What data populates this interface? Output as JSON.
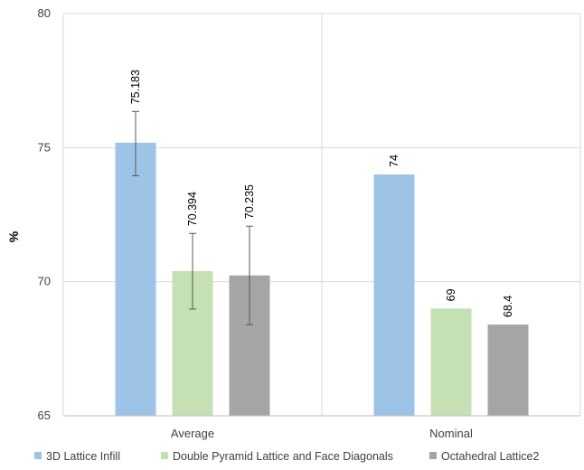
{
  "chart_data": {
    "type": "bar",
    "title": "",
    "xlabel": "",
    "ylabel": "%",
    "ylim": [
      65,
      80
    ],
    "yticks": [
      65,
      70,
      75,
      80
    ],
    "grid": true,
    "legend_position": "bottom",
    "categories": [
      "Average",
      "Nominal"
    ],
    "series": [
      {
        "name": "3D Lattice Infill",
        "color": "#9dc3e6",
        "values": [
          75.183,
          74
        ],
        "labels": [
          "75.183",
          "74"
        ],
        "error_low": [
          73.95,
          null
        ],
        "error_high": [
          76.35,
          null
        ]
      },
      {
        "name": "Double Pyramid Lattice and Face Diagonals",
        "color": "#c5e0b4",
        "values": [
          70.394,
          69
        ],
        "labels": [
          "70.394",
          "69"
        ],
        "error_low": [
          68.98,
          null
        ],
        "error_high": [
          71.8,
          null
        ]
      },
      {
        "name": "Octahedral Lattice2",
        "color": "#a5a5a5",
        "values": [
          70.235,
          68.4
        ],
        "labels": [
          "70.235",
          "68.4"
        ],
        "error_low": [
          68.4,
          null
        ],
        "error_high": [
          72.07,
          null
        ]
      }
    ]
  }
}
